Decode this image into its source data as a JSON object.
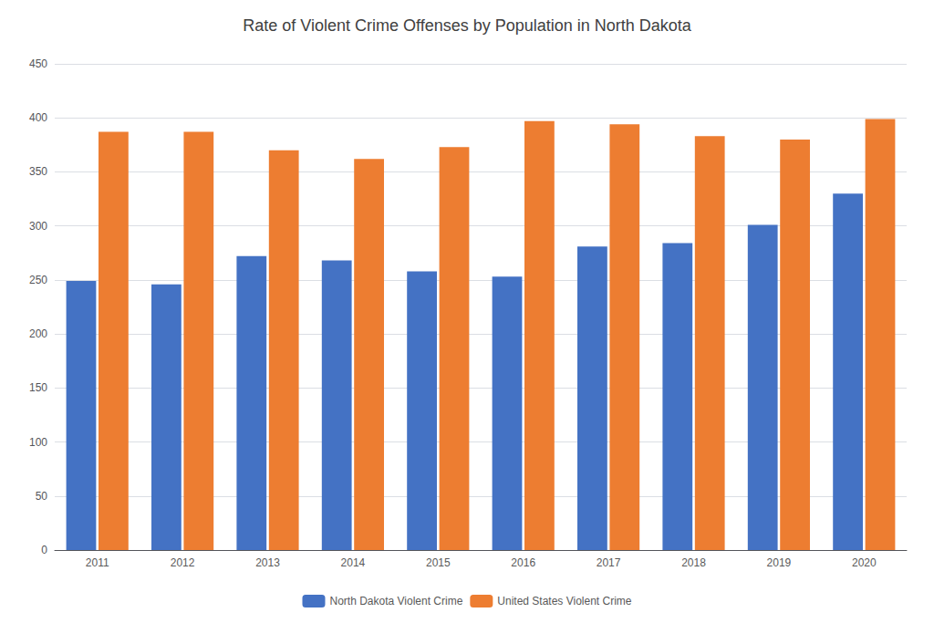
{
  "chart_data": {
    "type": "bar",
    "title": "Rate of Violent Crime Offenses by Population in North Dakota",
    "categories": [
      "2011",
      "2012",
      "2013",
      "2014",
      "2015",
      "2016",
      "2017",
      "2018",
      "2019",
      "2020"
    ],
    "series": [
      {
        "name": "North Dakota Violent Crime",
        "color": "#4472C4",
        "values": [
          249,
          246,
          272,
          268,
          258,
          253,
          281,
          284,
          301,
          330
        ]
      },
      {
        "name": "United States Violent Crime",
        "color": "#ED7D31",
        "values": [
          387,
          387,
          370,
          362,
          373,
          397,
          394,
          383,
          380,
          399
        ]
      }
    ],
    "ylim": [
      0,
      450
    ],
    "yticks": [
      0,
      50,
      100,
      150,
      200,
      250,
      300,
      350,
      400,
      450
    ],
    "grid": true,
    "legend": "bottom"
  }
}
